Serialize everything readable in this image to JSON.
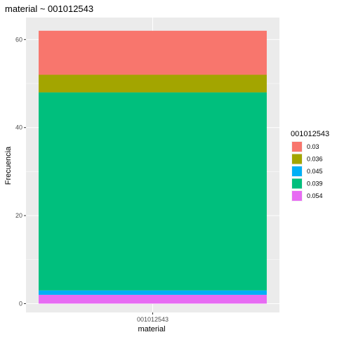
{
  "chart_data": {
    "type": "bar",
    "title": "material ~ 001012543",
    "xlabel": "material",
    "ylabel": "Frecuencia",
    "categories": [
      "001012543"
    ],
    "legend_title": "001012543",
    "legend_position": "right",
    "grid": true,
    "ylim": [
      -2,
      65
    ],
    "y_ticks": [
      "0",
      "20",
      "40",
      "60"
    ],
    "stack_order_bottom_to_top": [
      "0.054",
      "0.045",
      "0.039",
      "0.036",
      "0.03"
    ],
    "series": [
      {
        "name": "0.03",
        "color": "#F8766D",
        "values": [
          10
        ]
      },
      {
        "name": "0.036",
        "color": "#A3A500",
        "values": [
          4
        ]
      },
      {
        "name": "0.045",
        "color": "#00B0F6",
        "values": [
          1
        ]
      },
      {
        "name": "0.039",
        "color": "#00BF7D",
        "values": [
          45
        ]
      },
      {
        "name": "0.054",
        "color": "#E76BF3",
        "values": [
          2
        ]
      }
    ]
  }
}
